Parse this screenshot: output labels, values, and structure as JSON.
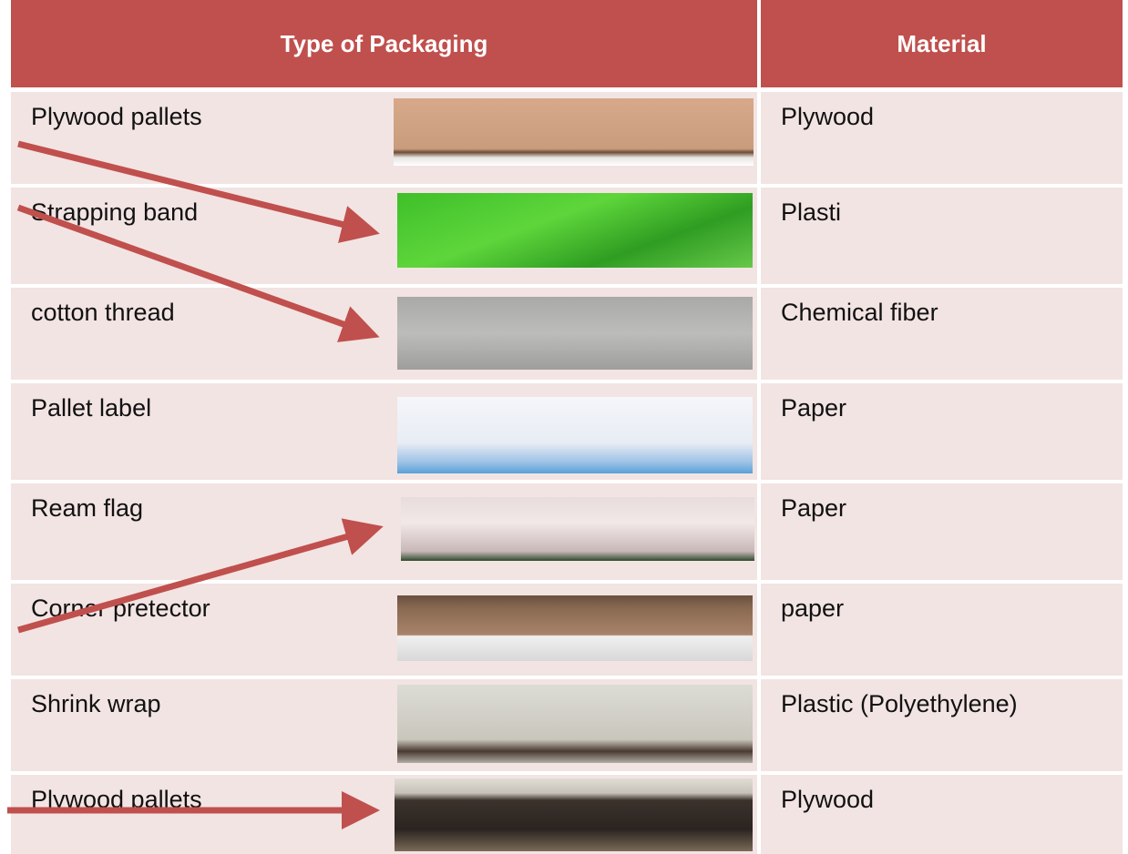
{
  "table": {
    "header": [
      "Type of Packaging",
      "Material"
    ],
    "rows": [
      [
        "Plywood pallets",
        "Plywood"
      ],
      [
        "Strapping band",
        "Plasti"
      ],
      [
        "cotton thread",
        "Chemical fiber"
      ],
      [
        "Pallet label",
        "Paper"
      ],
      [
        "Ream flag",
        "Paper"
      ],
      [
        "Corner pretector",
        "paper"
      ],
      [
        "Shrink wrap",
        "Plastic (Polyethylene)"
      ],
      [
        "Plywood pallets",
        "Plywood"
      ]
    ]
  }
}
